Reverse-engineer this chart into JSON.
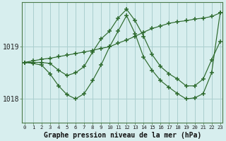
{
  "title": "Graphe pression niveau de la mer (hPa)",
  "bg_color": "#d7eeee",
  "grid_color": "#aacfcf",
  "line_color": "#2d6a2d",
  "x_ticks": [
    0,
    1,
    2,
    3,
    4,
    5,
    6,
    7,
    8,
    9,
    10,
    11,
    12,
    13,
    14,
    15,
    16,
    17,
    18,
    19,
    20,
    21,
    22,
    23
  ],
  "y_ticks": [
    1018,
    1019
  ],
  "ylim": [
    1017.55,
    1019.85
  ],
  "xlim": [
    -0.3,
    23.3
  ],
  "series": [
    {
      "x": [
        0,
        1,
        2,
        3,
        4,
        5,
        6,
        7,
        8,
        9,
        10,
        11,
        12,
        13,
        14,
        15,
        16,
        17,
        18,
        19,
        20,
        21,
        22,
        23
      ],
      "y": [
        1018.7,
        1018.73,
        1018.76,
        1018.78,
        1018.81,
        1018.84,
        1018.87,
        1018.9,
        1018.93,
        1018.97,
        1019.0,
        1019.07,
        1019.13,
        1019.2,
        1019.28,
        1019.35,
        1019.4,
        1019.45,
        1019.48,
        1019.5,
        1019.53,
        1019.55,
        1019.58,
        1019.65
      ]
    },
    {
      "x": [
        0,
        1,
        2,
        3,
        4,
        5,
        6,
        7,
        8,
        9,
        10,
        11,
        12,
        13,
        14,
        15,
        16,
        17,
        18,
        19,
        20,
        21,
        22,
        23
      ],
      "y": [
        1018.7,
        1018.68,
        1018.65,
        1018.48,
        1018.25,
        1018.08,
        1018.0,
        1018.1,
        1018.35,
        1018.65,
        1019.0,
        1019.3,
        1019.6,
        1019.25,
        1018.8,
        1018.55,
        1018.35,
        1018.22,
        1018.1,
        1018.0,
        1018.02,
        1018.1,
        1018.5,
        1019.65
      ]
    },
    {
      "x": [
        0,
        1,
        2,
        3,
        4,
        5,
        6,
        7,
        8,
        9,
        10,
        11,
        12,
        13,
        14,
        15,
        16,
        17,
        18,
        19,
        20,
        21,
        22,
        23
      ],
      "y": [
        1018.7,
        1018.7,
        1018.7,
        1018.68,
        1018.55,
        1018.45,
        1018.5,
        1018.62,
        1018.9,
        1019.15,
        1019.3,
        1019.55,
        1019.72,
        1019.5,
        1019.2,
        1018.85,
        1018.62,
        1018.48,
        1018.38,
        1018.25,
        1018.25,
        1018.38,
        1018.75,
        1019.1
      ]
    }
  ]
}
